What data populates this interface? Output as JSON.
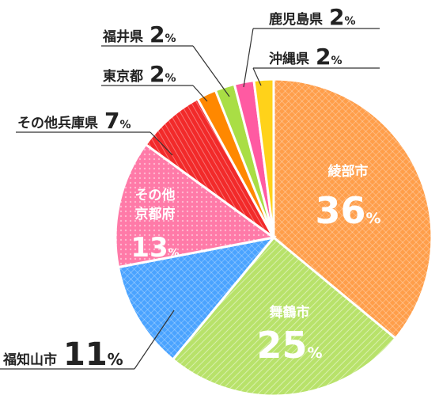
{
  "chart_data": {
    "type": "pie",
    "unit": "%",
    "slices": [
      {
        "label": "綾部市",
        "value": 36,
        "color": "#ff9e4a"
      },
      {
        "label": "舞鶴市",
        "value": 25,
        "color": "#b8e26a"
      },
      {
        "label": "福知山市",
        "value": 11,
        "color": "#4aa3ff"
      },
      {
        "label": "その他京都府",
        "label_lines": [
          "その他",
          "京都府"
        ],
        "value": 13,
        "color": "#ff7aa8"
      },
      {
        "label": "その他兵庫県",
        "value": 7,
        "color": "#f22a2a"
      },
      {
        "label": "東京都",
        "value": 2,
        "color": "#ff8800"
      },
      {
        "label": "福井県",
        "value": 2,
        "color": "#a9de45"
      },
      {
        "label": "鹿児島県",
        "value": 2,
        "color": "#ff5aa2"
      },
      {
        "label": "沖縄県",
        "value": 2,
        "color": "#ffd21a"
      }
    ]
  }
}
